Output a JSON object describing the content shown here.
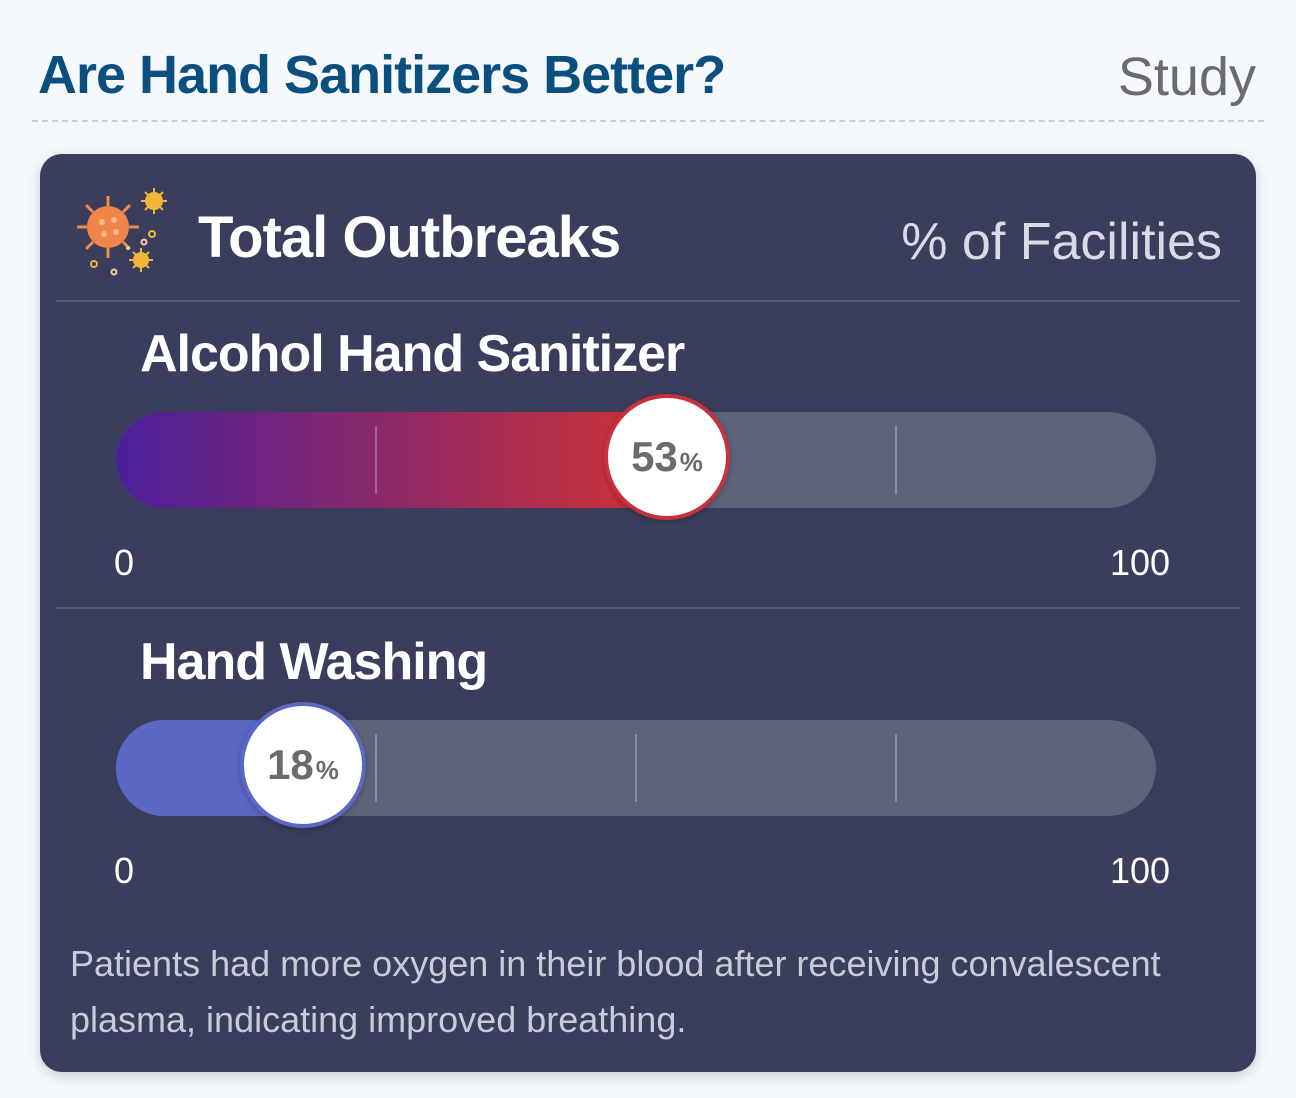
{
  "header": {
    "title": "Are Hand Sanitizers Better?",
    "tag": "Study"
  },
  "card": {
    "icon": "virus-icon",
    "title": "Total Outbreaks",
    "unit": "% of Facilities",
    "note": "Patients had more oxygen in their blood after receiving convalescent plasma, indicating improved breathing."
  },
  "chart_data": {
    "type": "bar",
    "title": "Total Outbreaks",
    "ylabel": "% of Facilities",
    "range": [
      0,
      100
    ],
    "range_labels": {
      "min": "0",
      "max": "100"
    },
    "categories": [
      "Alcohol Hand Sanitizer",
      "Hand Washing"
    ],
    "values": [
      53,
      18
    ],
    "value_suffix": "%",
    "colors": {
      "Alcohol Hand Sanitizer": {
        "start": "#4b1f9b",
        "end": "#d13333",
        "accent": "#c8303c"
      },
      "Hand Washing": {
        "start": "#5a68c4",
        "end": "#5a68c4",
        "accent": "#5a68c4"
      }
    }
  }
}
